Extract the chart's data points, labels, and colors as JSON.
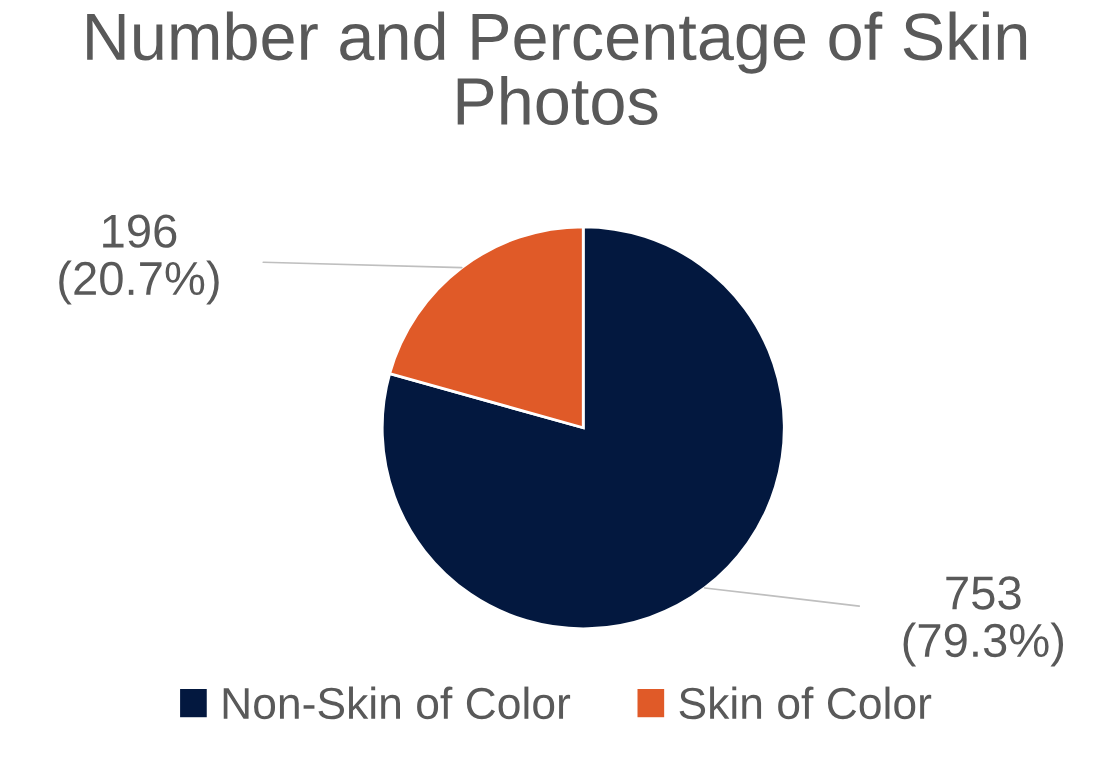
{
  "chart_data": {
    "type": "pie",
    "title": "Number and Percentage of Skin Photos",
    "categories": [
      "Non-Skin of Color",
      "Skin of Color"
    ],
    "values": [
      753,
      196
    ],
    "colors": [
      "#03183f",
      "#e05a28"
    ],
    "value_labels": [
      "753\n(79.3%)",
      "196\n(20.7%)"
    ],
    "legend": "bottom"
  }
}
